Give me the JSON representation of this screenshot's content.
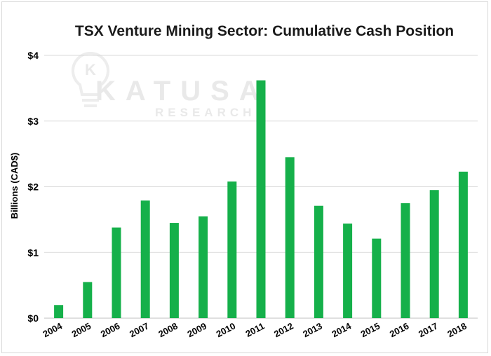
{
  "chart_data": {
    "type": "bar",
    "title": "TSX Venture Mining Sector: Cumulative Cash Position",
    "xlabel": "",
    "ylabel": "Billions (CAD$)",
    "categories": [
      "2004",
      "2005",
      "2006",
      "2007",
      "2008",
      "2009",
      "2010",
      "2011",
      "2012",
      "2013",
      "2014",
      "2015",
      "2016",
      "2017",
      "2018"
    ],
    "values": [
      0.2,
      0.55,
      1.38,
      1.79,
      1.45,
      1.55,
      2.08,
      3.62,
      2.45,
      1.71,
      1.44,
      1.21,
      1.75,
      1.95,
      2.23
    ],
    "ylim": [
      0,
      4
    ],
    "yticks": [
      0,
      1,
      2,
      3,
      4
    ],
    "ytick_labels": [
      "$0",
      "$1",
      "$2",
      "$3",
      "$4"
    ],
    "grid": "horizontal",
    "legend": "none",
    "bar_color": "#15b04a"
  },
  "watermark": {
    "brand": "KATUSA",
    "sub": "RESEARCH",
    "logo_letter": "K"
  }
}
